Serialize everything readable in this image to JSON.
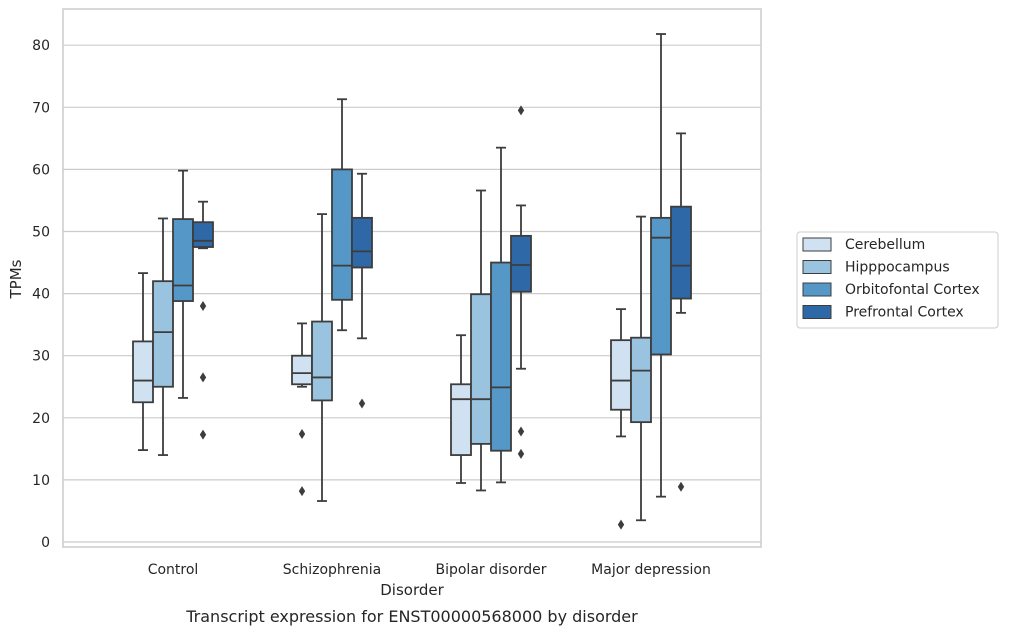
{
  "caption": "Transcript expression for ENST00000568000 by disorder",
  "chart_data": {
    "type": "boxplot",
    "title": "",
    "xlabel": "Disorder",
    "ylabel": "TPMs",
    "ylim": [
      -1,
      86
    ],
    "yticks": [
      0,
      10,
      20,
      30,
      40,
      50,
      60,
      70,
      80
    ],
    "grid": true,
    "legend_position": "right",
    "categories": [
      "Control",
      "Schizophrenia",
      "Bipolar disorder",
      "Major depression"
    ],
    "series": [
      {
        "name": "Cerebellum",
        "color": "#d0e1f2",
        "boxes": [
          {
            "whislo": 14.8,
            "q1": 22.5,
            "med": 26.0,
            "q3": 32.3,
            "whishi": 43.3,
            "fliers": []
          },
          {
            "whislo": 25.0,
            "q1": 25.4,
            "med": 27.2,
            "q3": 30.0,
            "whishi": 35.2,
            "fliers": [
              17.4,
              8.2
            ]
          },
          {
            "whislo": 9.5,
            "q1": 14.0,
            "med": 23.0,
            "q3": 25.4,
            "whishi": 33.3,
            "fliers": []
          },
          {
            "whislo": 17.0,
            "q1": 21.3,
            "med": 26.0,
            "q3": 32.5,
            "whishi": 37.5,
            "fliers": [
              2.8
            ]
          }
        ]
      },
      {
        "name": "Hipppocampus",
        "color": "#9ac3df",
        "boxes": [
          {
            "whislo": 14.0,
            "q1": 25.0,
            "med": 33.8,
            "q3": 42.0,
            "whishi": 52.1,
            "fliers": []
          },
          {
            "whislo": 6.6,
            "q1": 22.8,
            "med": 26.5,
            "q3": 35.5,
            "whishi": 52.8,
            "fliers": []
          },
          {
            "whislo": 8.3,
            "q1": 15.8,
            "med": 23.0,
            "q3": 39.9,
            "whishi": 56.6,
            "fliers": []
          },
          {
            "whislo": 3.5,
            "q1": 19.3,
            "med": 27.6,
            "q3": 32.9,
            "whishi": 52.4,
            "fliers": []
          }
        ]
      },
      {
        "name": "Orbitofontal Cortex",
        "color": "#5597c6",
        "boxes": [
          {
            "whislo": 23.2,
            "q1": 38.8,
            "med": 41.3,
            "q3": 52.0,
            "whishi": 59.8,
            "fliers": []
          },
          {
            "whislo": 34.1,
            "q1": 39.0,
            "med": 44.5,
            "q3": 60.0,
            "whishi": 71.3,
            "fliers": []
          },
          {
            "whislo": 9.6,
            "q1": 14.7,
            "med": 24.9,
            "q3": 45.0,
            "whishi": 63.5,
            "fliers": []
          },
          {
            "whislo": 7.3,
            "q1": 30.2,
            "med": 49.0,
            "q3": 52.2,
            "whishi": 81.8,
            "fliers": []
          }
        ]
      },
      {
        "name": "Prefrontal Cortex",
        "color": "#2e68a6",
        "boxes": [
          {
            "whislo": 47.3,
            "q1": 47.5,
            "med": 48.5,
            "q3": 51.5,
            "whishi": 54.8,
            "fliers": [
              38.0,
              26.5,
              17.3
            ]
          },
          {
            "whislo": 32.8,
            "q1": 44.2,
            "med": 46.8,
            "q3": 52.2,
            "whishi": 59.3,
            "fliers": [
              22.3
            ]
          },
          {
            "whislo": 27.9,
            "q1": 40.3,
            "med": 44.6,
            "q3": 49.3,
            "whishi": 54.2,
            "fliers": [
              69.5,
              17.8,
              14.2
            ]
          },
          {
            "whislo": 36.9,
            "q1": 39.2,
            "med": 44.5,
            "q3": 54.0,
            "whishi": 65.8,
            "fliers": [
              8.9
            ]
          }
        ]
      }
    ]
  }
}
